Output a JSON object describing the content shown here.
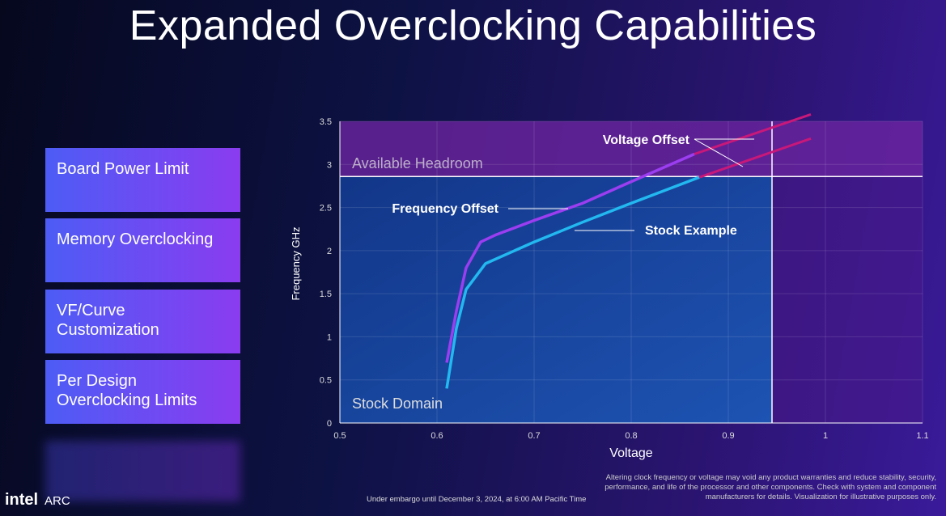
{
  "title": "Expanded Overclocking Capabilities",
  "sidebar": [
    "Board Power Limit",
    "Memory Overclocking",
    "VF/Curve Customization",
    "Per Design Overclocking Limits"
  ],
  "chart_data": {
    "type": "line",
    "x_label": "Voltage",
    "y_label": "Frequency GHz",
    "xlim": [
      0.5,
      1.1
    ],
    "xticks": [
      0.5,
      0.6,
      0.7,
      0.8,
      0.9,
      1,
      1.1
    ],
    "ylim": [
      0,
      3.5
    ],
    "yticks": [
      0,
      0.5,
      1,
      1.5,
      2,
      2.5,
      3,
      3.5
    ],
    "grid": true,
    "series": [
      {
        "name": "Frequency Offset",
        "color": "#9b3df0",
        "x": [
          0.61,
          0.62,
          0.63,
          0.645,
          0.66,
          0.7,
          0.75,
          0.8,
          0.865
        ],
        "values": [
          0.7,
          1.3,
          1.8,
          2.1,
          2.18,
          2.35,
          2.55,
          2.8,
          3.12
        ]
      },
      {
        "name": "Stock Example",
        "color": "#22b8f0",
        "x": [
          0.61,
          0.62,
          0.63,
          0.65,
          0.7,
          0.75,
          0.8,
          0.87
        ],
        "values": [
          0.4,
          1.1,
          1.55,
          1.85,
          2.1,
          2.33,
          2.55,
          2.85
        ]
      }
    ],
    "voltage_offset": {
      "label": "Voltage Offset",
      "color": "#c8187a",
      "segments": [
        {
          "x": [
            0.865,
            0.985
          ],
          "values": [
            3.12,
            3.58
          ]
        },
        {
          "x": [
            0.87,
            0.985
          ],
          "values": [
            2.85,
            3.3
          ]
        }
      ]
    },
    "stock_limit": {
      "voltage": 0.945,
      "frequency": 2.86
    },
    "regions": {
      "headroom": "Available Headroom",
      "stock": "Stock Domain"
    }
  },
  "footer": {
    "brand": "intel",
    "product": "ARC",
    "embargo": "Under embargo until December 3, 2024, at 6:00 AM Pacific Time",
    "disclaimer": "Altering clock frequency or voltage may void any product warranties and reduce stability, security, performance, and life of the processor and other components.  Check with system and component manufacturers for details. Visualization for illustrative purposes only."
  }
}
